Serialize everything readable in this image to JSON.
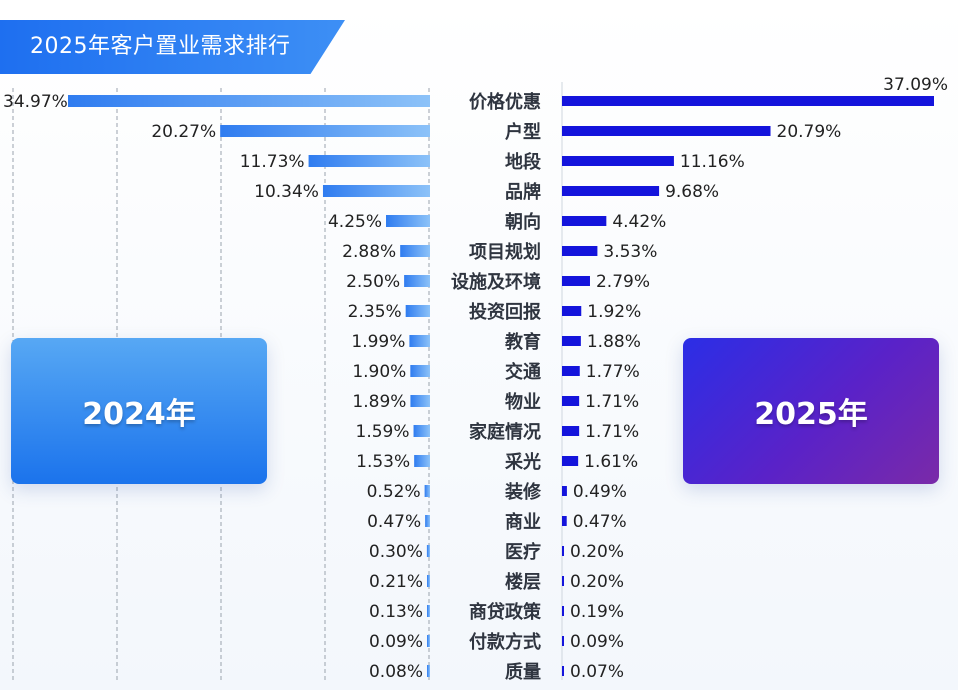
{
  "title": "2025年客户置业需求排行",
  "cards": {
    "left": "2024年",
    "right": "2025年"
  },
  "colors": {
    "bar_2024": "#4a95f2",
    "bar_2025": "#1414dc",
    "banner": "#1e6ff0"
  },
  "chart_data": {
    "type": "bar",
    "orientation": "horizontal-butterfly",
    "title": "2025年客户置业需求排行",
    "categories": [
      "价格优惠",
      "户型",
      "地段",
      "品牌",
      "朝向",
      "项目规划",
      "设施及环境",
      "投资回报",
      "教育",
      "交通",
      "物业",
      "家庭情况",
      "采光",
      "装修",
      "商业",
      "医疗",
      "楼层",
      "商贷政策",
      "付款方式",
      "质量"
    ],
    "series": [
      {
        "name": "2024年",
        "values": [
          34.97,
          20.27,
          11.73,
          10.34,
          4.25,
          2.88,
          2.5,
          2.35,
          1.99,
          1.9,
          1.89,
          1.59,
          1.53,
          0.52,
          0.47,
          0.3,
          0.21,
          0.13,
          0.09,
          0.08
        ],
        "labels": [
          "34.97%",
          "20.27%",
          "11.73%",
          "10.34%",
          "4.25%",
          "2.88%",
          "2.50%",
          "2.35%",
          "1.99%",
          "1.90%",
          "1.89%",
          "1.59%",
          "1.53%",
          "0.52%",
          "0.47%",
          "0.30%",
          "0.21%",
          "0.13%",
          "0.09%",
          "0.08%"
        ]
      },
      {
        "name": "2025年",
        "values": [
          37.09,
          20.79,
          11.16,
          9.68,
          4.42,
          3.53,
          2.79,
          1.92,
          1.88,
          1.77,
          1.71,
          1.71,
          1.61,
          0.49,
          0.47,
          0.2,
          0.2,
          0.19,
          0.09,
          0.07
        ],
        "labels": [
          "37.09%",
          "20.79%",
          "11.16%",
          "9.68%",
          "4.42%",
          "3.53%",
          "2.79%",
          "1.92%",
          "1.88%",
          "1.77%",
          "1.71%",
          "1.71%",
          "1.61%",
          "0.49%",
          "0.47%",
          "0.20%",
          "0.20%",
          "0.19%",
          "0.09%",
          "0.07%"
        ]
      }
    ],
    "xlim": [
      0,
      40
    ],
    "grid": true
  }
}
